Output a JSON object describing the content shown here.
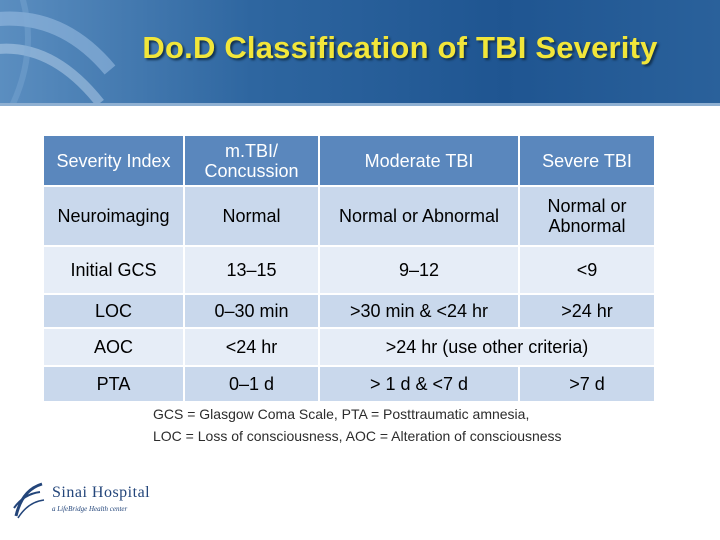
{
  "slide": {
    "title": "Do.D Classification of TBI Severity"
  },
  "table": {
    "headers": [
      "Severity Index",
      "m.TBI/ Concussion",
      "Moderate TBI",
      "Severe TBI"
    ],
    "rows": {
      "neuroimaging": [
        "Neuroimaging",
        "Normal",
        "Normal or Abnormal",
        "Normal or Abnormal"
      ],
      "gcs": [
        "Initial GCS",
        "13–15",
        "9–12",
        "<9"
      ],
      "loc": [
        "LOC",
        "0–30 min",
        ">30 min & <24 hr",
        ">24 hr"
      ],
      "aoc": [
        "AOC",
        "<24 hr",
        ">24 hr (use other criteria)"
      ],
      "pta": [
        "PTA",
        "0–1 d",
        "> 1 d &  <7 d",
        ">7 d"
      ]
    }
  },
  "footnote": {
    "line1": "GCS =  Glasgow Coma Scale, PTA = Posttraumatic amnesia,",
    "line2": "LOC = Loss of consciousness, AOC = Alteration of consciousness"
  },
  "logo": {
    "name": "Sinai Hospital",
    "tagline": "a LifeBridge Health center"
  },
  "colors": {
    "title": "#f2e63a",
    "header_bg": "#5a87bd",
    "band_bg": "#c9d8ec",
    "plain_bg": "#e6edf7"
  }
}
